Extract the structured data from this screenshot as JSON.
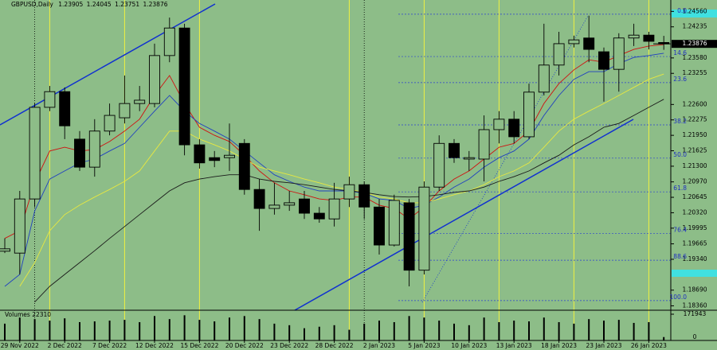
{
  "chart_data": {
    "type": "candlestick",
    "title": "GBPUSD,Daily",
    "categories": [
      null,
      "29 Nov 2022",
      null,
      null,
      "2 Dec 2022",
      null,
      null,
      "7 Dec 2022",
      null,
      null,
      "12 Dec 2022",
      null,
      null,
      "15 Dec 2022",
      null,
      null,
      "20 Dec 2022",
      null,
      null,
      "23 Dec 2022",
      null,
      null,
      "28 Dec 2022",
      null,
      null,
      "2 Jan 2023",
      null,
      null,
      "5 Jan 2023",
      null,
      null,
      "10 Jan 2023",
      null,
      null,
      "13 Jan 2023",
      null,
      null,
      "18 Jan 2023",
      null,
      null,
      "23 Jan 2023",
      null,
      null,
      "26 Jan 2023",
      null
    ],
    "open": [
      1.1951,
      1.1947,
      1.2061,
      1.2254,
      1.2287,
      1.2187,
      1.2128,
      1.2204,
      1.2232,
      1.2262,
      1.2262,
      1.2363,
      1.2421,
      1.2175,
      1.2148,
      1.2148,
      1.2178,
      1.2081,
      1.2041,
      1.2048,
      1.2061,
      1.2031,
      1.2019,
      1.2061,
      1.2091,
      1.2044,
      1.1964,
      1.2053,
      1.1911,
      1.2086,
      1.2178,
      1.2145,
      1.2145,
      1.2207,
      1.2229,
      1.2192,
      1.2286,
      1.2343,
      1.2388,
      1.24,
      1.2371,
      1.2334,
      1.24,
      1.2406,
      1.23905
    ],
    "high": [
      1.1978,
      1.2078,
      1.2262,
      1.2299,
      1.2296,
      1.2204,
      1.2229,
      1.2262,
      1.2321,
      1.2299,
      1.2388,
      1.2443,
      1.243,
      1.2187,
      1.2162,
      1.222,
      1.2187,
      1.2103,
      1.2095,
      1.2078,
      1.2078,
      1.2044,
      1.2095,
      1.2108,
      1.2098,
      1.2061,
      1.207,
      1.2061,
      1.2098,
      1.2195,
      1.2187,
      1.2162,
      1.2237,
      1.2246,
      1.2246,
      1.2304,
      1.243,
      1.2413,
      1.2405,
      1.2447,
      1.238,
      1.241,
      1.243,
      1.2413,
      1.24045
    ],
    "low": [
      1.1947,
      1.1902,
      1.2044,
      1.2246,
      1.2187,
      1.212,
      1.2108,
      1.2195,
      1.222,
      1.2246,
      1.2254,
      1.2349,
      1.2153,
      1.2125,
      1.2128,
      1.212,
      1.207,
      1.1994,
      1.2028,
      1.2036,
      1.2019,
      1.2011,
      1.2003,
      1.2044,
      1.2019,
      1.1944,
      1.1961,
      1.1877,
      1.1902,
      1.2078,
      1.2137,
      1.212,
      1.2098,
      1.2178,
      1.2178,
      1.2187,
      1.2279,
      1.2321,
      1.238,
      1.2349,
      1.2266,
      1.2287,
      1.2383,
      1.2376,
      1.23751
    ],
    "close": [
      1.1956,
      1.2061,
      1.2254,
      1.2287,
      1.2215,
      1.2128,
      1.2204,
      1.2237,
      1.2262,
      1.2269,
      1.2363,
      1.2421,
      1.2175,
      1.2137,
      1.2142,
      1.2153,
      1.2081,
      1.2041,
      1.2048,
      1.2053,
      1.2031,
      1.2019,
      1.2061,
      1.2091,
      1.2044,
      1.1964,
      1.2058,
      1.1911,
      1.2086,
      1.2178,
      1.2148,
      1.2148,
      1.2207,
      1.2229,
      1.2192,
      1.2286,
      1.2343,
      1.2388,
      1.2396,
      1.2376,
      1.2334,
      1.24,
      1.2406,
      1.2393,
      1.23876
    ],
    "up_color": "#8dbd88",
    "down_color": "#000000",
    "series": [
      {
        "color": "#d01010",
        "values": [
          1.1978,
          1.1994,
          1.2095,
          1.2162,
          1.217,
          1.2162,
          1.2165,
          1.2182,
          1.2204,
          1.2229,
          1.2279,
          1.2321,
          1.2262,
          1.2212,
          1.2195,
          1.2182,
          1.2153,
          1.212,
          1.2095,
          1.2078,
          1.207,
          1.2061,
          1.2058,
          1.2065,
          1.2065,
          1.2048,
          1.2041,
          1.2019,
          1.2044,
          1.2078,
          1.2103,
          1.212,
          1.2145,
          1.217,
          1.2178,
          1.2204,
          1.2262,
          1.2304,
          1.2333,
          1.2354,
          1.2349,
          1.2363,
          1.2376,
          1.2383,
          1.2386
        ]
      },
      {
        "color": "#2040c0",
        "values": [
          1.1877,
          1.1902,
          1.2036,
          1.2103,
          1.212,
          1.2137,
          1.2145,
          1.2162,
          1.2178,
          1.2212,
          1.2246,
          1.2279,
          1.2246,
          1.222,
          1.2204,
          1.2187,
          1.2162,
          1.2137,
          1.2112,
          1.2098,
          1.2086,
          1.2078,
          1.2078,
          1.2078,
          1.2073,
          1.2061,
          1.2058,
          1.2041,
          1.2048,
          1.2065,
          1.2086,
          1.2103,
          1.2128,
          1.2148,
          1.2162,
          1.2187,
          1.2237,
          1.2279,
          1.2313,
          1.2329,
          1.2329,
          1.2346,
          1.2359,
          1.2363,
          1.2368
        ]
      },
      {
        "color": "#e8e840",
        "values": [
          null,
          1.1877,
          1.1927,
          1.1994,
          1.2028,
          1.2048,
          1.2065,
          1.2081,
          1.2098,
          1.212,
          1.2162,
          1.2204,
          1.2204,
          1.2187,
          1.2175,
          1.2162,
          1.2145,
          1.2128,
          1.212,
          1.2112,
          1.2103,
          1.2095,
          1.2086,
          1.2081,
          1.2075,
          1.2065,
          1.2061,
          1.2053,
          1.2053,
          1.2061,
          1.207,
          1.2078,
          1.2091,
          1.2108,
          1.212,
          1.2137,
          1.217,
          1.2204,
          1.2229,
          1.2246,
          1.2262,
          1.2279,
          1.2296,
          1.2313,
          1.2324
        ]
      },
      {
        "color": "#1a1a1a",
        "values": [
          null,
          null,
          1.1844,
          1.1877,
          1.1902,
          1.1927,
          1.1952,
          1.1978,
          1.2003,
          1.2028,
          1.2053,
          1.2078,
          1.2095,
          1.2103,
          1.2108,
          1.2112,
          1.2112,
          1.2103,
          1.2098,
          1.2095,
          1.2091,
          1.2086,
          1.2081,
          1.2078,
          1.2075,
          1.207,
          1.2066,
          1.2065,
          1.2066,
          1.207,
          1.2075,
          1.2078,
          1.2086,
          1.2098,
          1.2108,
          1.212,
          1.2137,
          1.2153,
          1.2175,
          1.2192,
          1.2212,
          1.222,
          1.2237,
          1.2254,
          1.2271
        ]
      }
    ],
    "ylim": [
      1.18267,
      1.248
    ],
    "yticks": [
      {
        "value": 1.2456,
        "label": "1.24560"
      },
      {
        "value": 1.24235,
        "label": "1.24235"
      },
      {
        "value": 1.2358,
        "label": "1.23580"
      },
      {
        "value": 1.23255,
        "label": "1.23255"
      },
      {
        "value": 1.226,
        "label": "1.22600"
      },
      {
        "value": 1.22275,
        "label": "1.22275"
      },
      {
        "value": 1.2195,
        "label": "1.21950"
      },
      {
        "value": 1.21625,
        "label": "1.21625"
      },
      {
        "value": 1.213,
        "label": "1.21300"
      },
      {
        "value": 1.2097,
        "label": "1.20970"
      },
      {
        "value": 1.20645,
        "label": "1.20645"
      },
      {
        "value": 1.2032,
        "label": "1.20320"
      },
      {
        "value": 1.19995,
        "label": "1.19995"
      },
      {
        "value": 1.19665,
        "label": "1.19665"
      },
      {
        "value": 1.1934,
        "label": "1.19340"
      },
      {
        "value": 1.1869,
        "label": "1.18690"
      },
      {
        "value": 1.1836,
        "label": "1.18360"
      }
    ],
    "fib_levels": [
      {
        "value": 1.245,
        "label": "0.0"
      },
      {
        "value": 1.2361,
        "label": "14.6"
      },
      {
        "value": 1.2306,
        "label": "23.6"
      },
      {
        "value": 1.2217,
        "label": "38.2"
      },
      {
        "value": 1.2147,
        "label": "50.0"
      },
      {
        "value": 1.2076,
        "label": "61.8"
      },
      {
        "value": 1.1988,
        "label": "76.4"
      },
      {
        "value": 1.1932,
        "label": "88.6"
      },
      {
        "value": 1.1847,
        "label": "100.0"
      }
    ],
    "volume": {
      "label": "Volumes",
      "color": "#000000",
      "values": [
        110000,
        150000,
        140000,
        130000,
        145000,
        120000,
        125000,
        130000,
        135000,
        120000,
        160000,
        140000,
        165000,
        135000,
        125000,
        150000,
        160000,
        140000,
        110000,
        100000,
        80000,
        90000,
        100000,
        70000,
        110000,
        130000,
        120000,
        160000,
        150000,
        130000,
        110000,
        100000,
        150000,
        120000,
        130000,
        125000,
        150000,
        120000,
        110000,
        140000,
        130000,
        135000,
        115000,
        120000,
        22310
      ],
      "ylim": [
        0,
        171943
      ],
      "yticks": [
        0,
        171943
      ]
    }
  }
}
